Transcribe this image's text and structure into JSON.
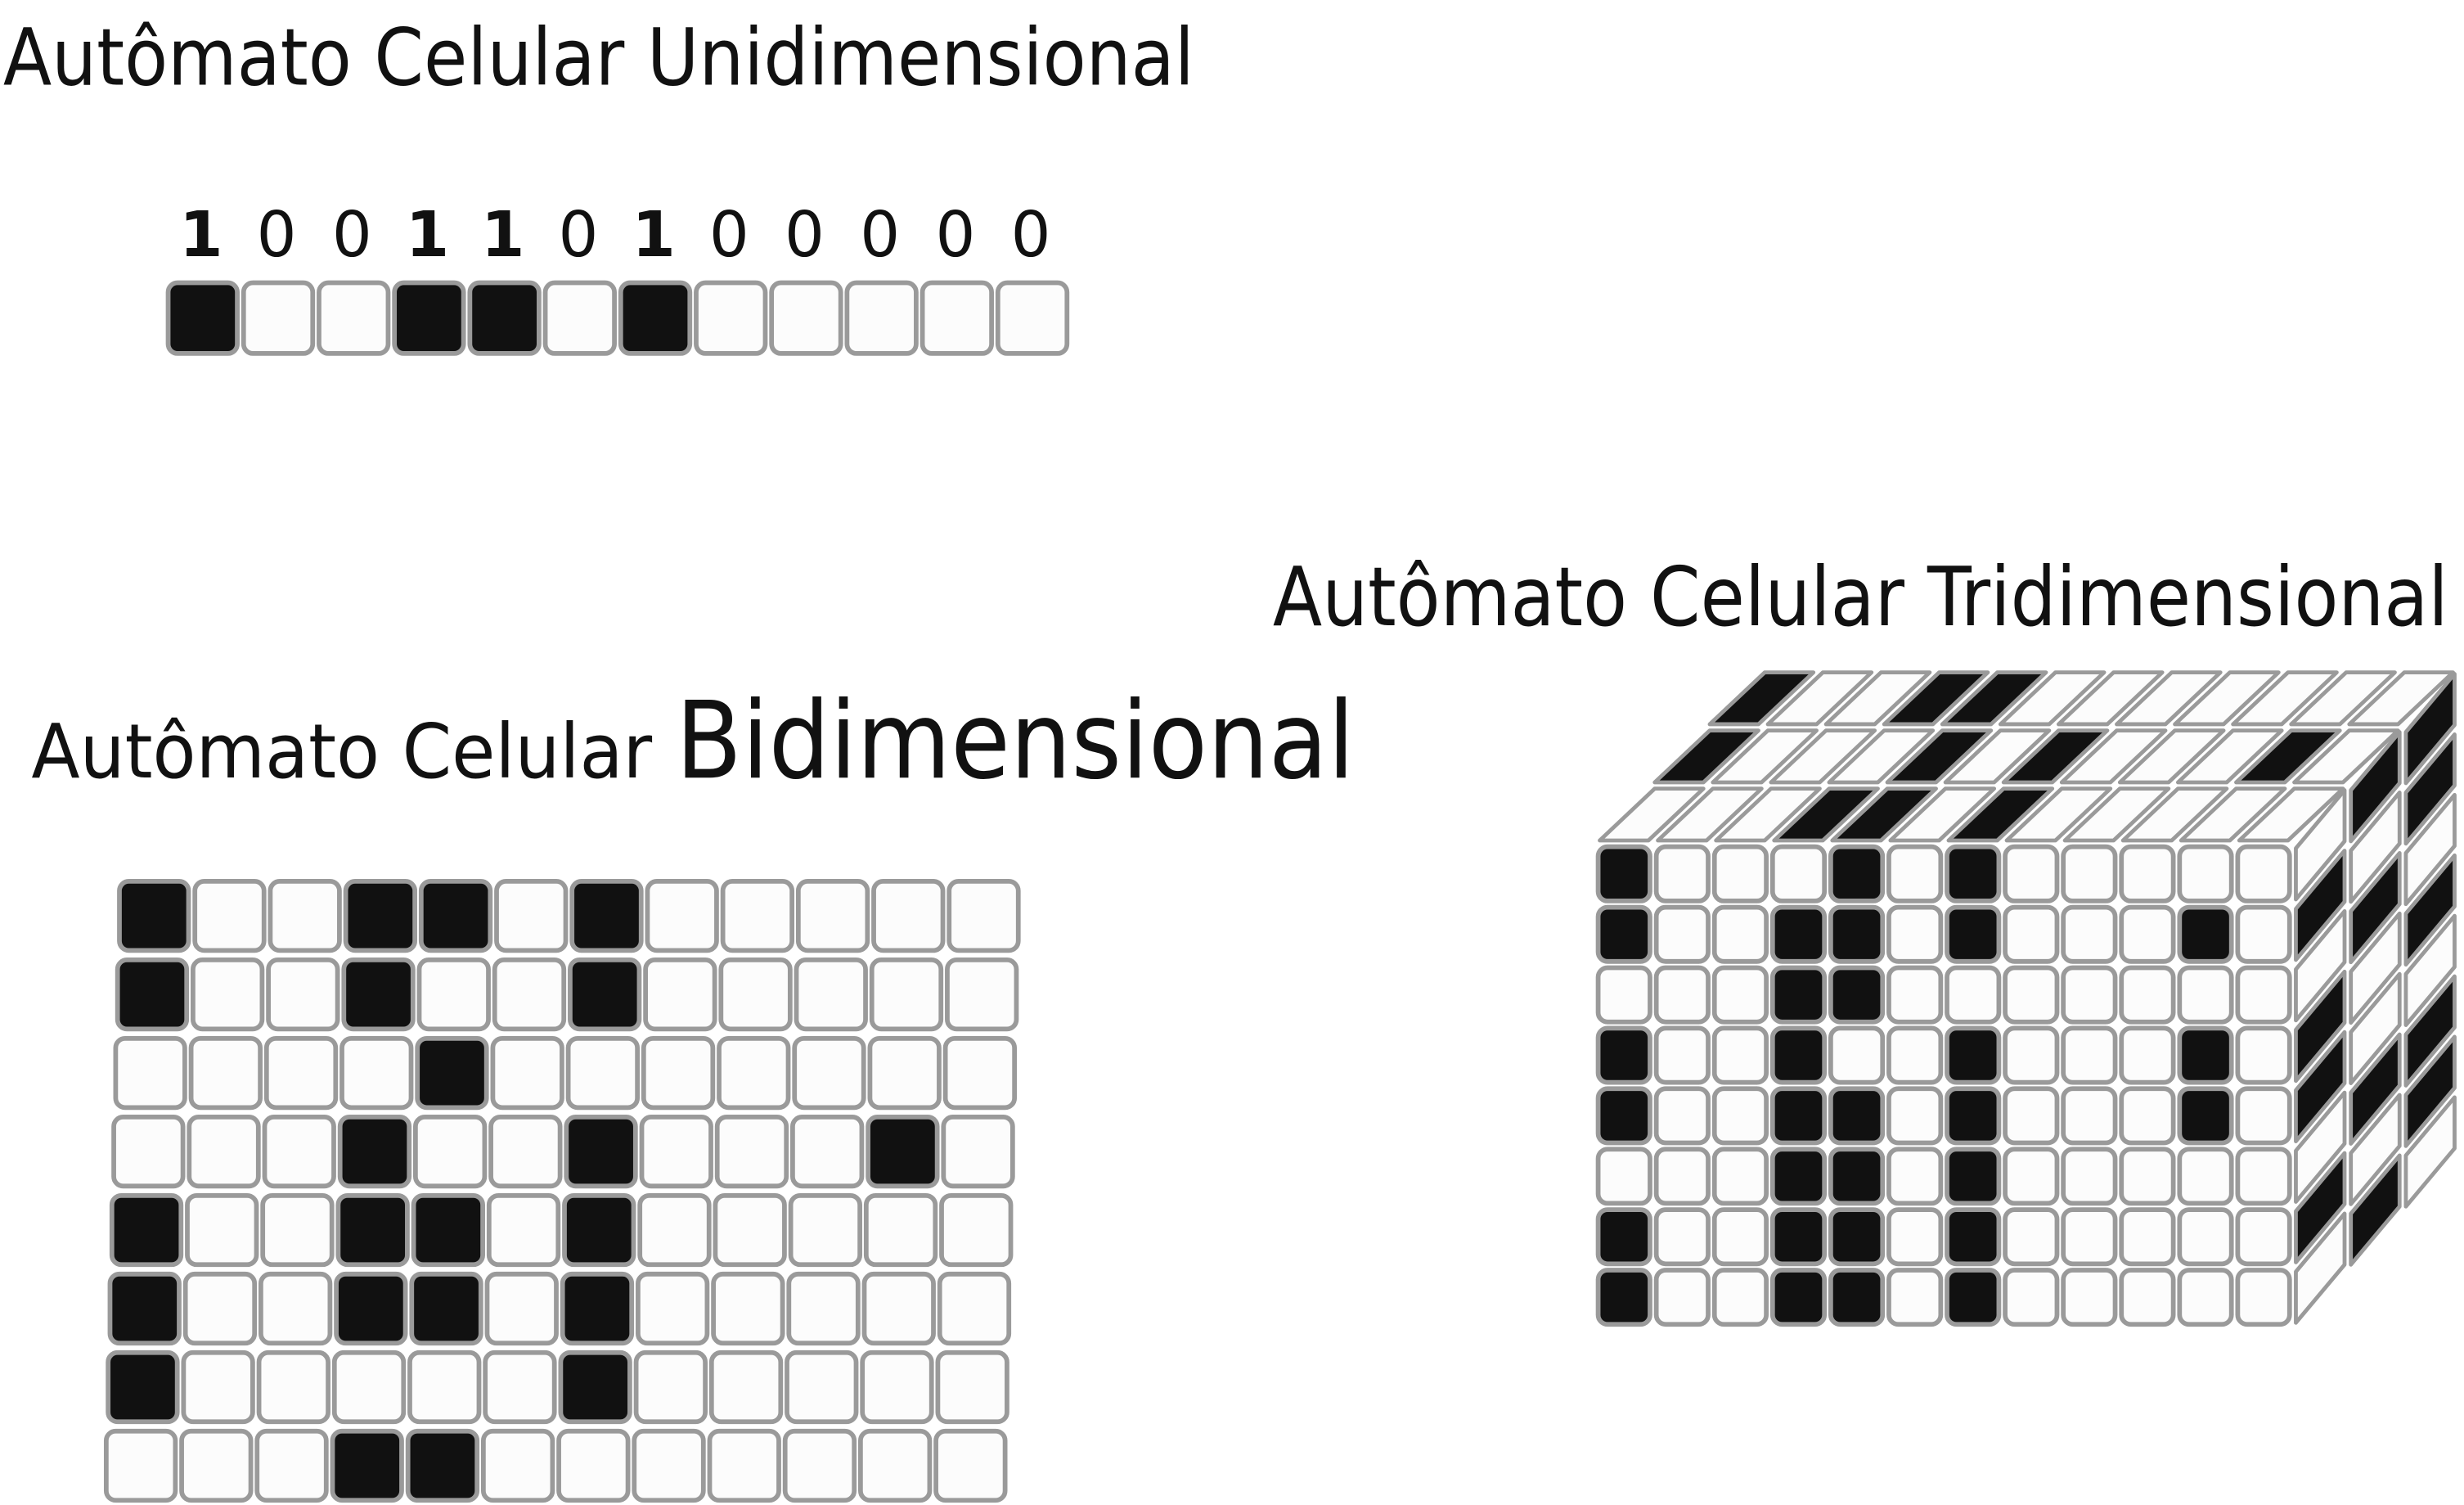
{
  "unidimensional": {
    "title": "Autômato Celular Unidimensional",
    "states": [
      "1",
      "0",
      "0",
      "1",
      "1",
      "0",
      "1",
      "0",
      "0",
      "0",
      "0",
      "0"
    ]
  },
  "bidimensional": {
    "title_prefix": "Autômato Celular",
    "title_emphasis": "Bidimensional"
  },
  "tridimensional": {
    "title": "Autômato Celular Tridimensional"
  }
}
